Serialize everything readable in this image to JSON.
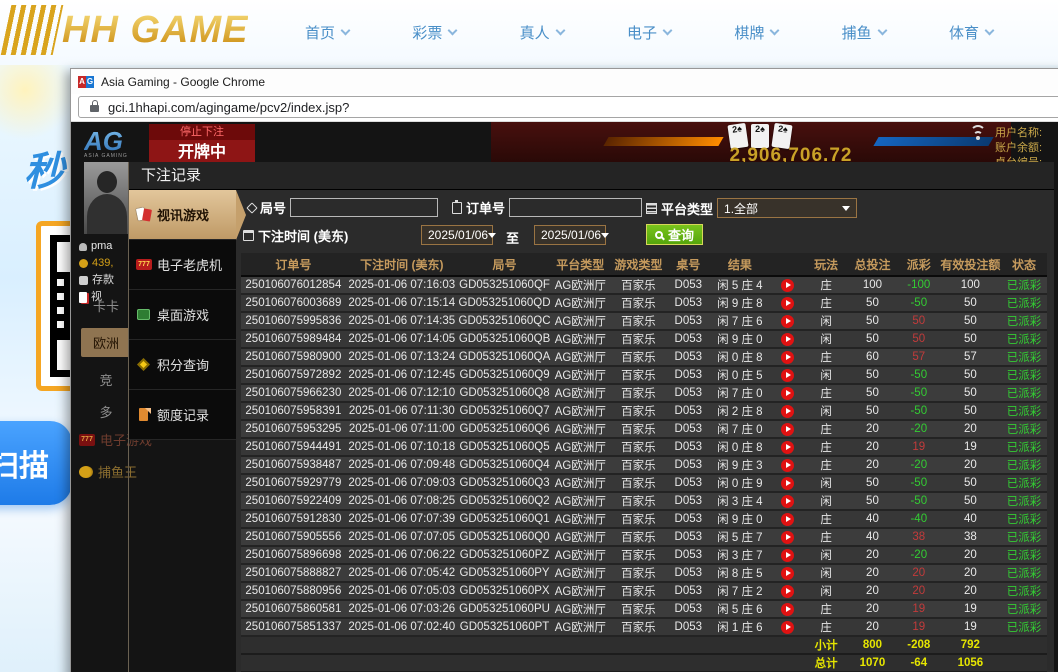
{
  "site_header": {
    "logo": "HH GAME",
    "nav": [
      {
        "label": "首页"
      },
      {
        "label": "彩票"
      },
      {
        "label": "真人"
      },
      {
        "label": "电子"
      },
      {
        "label": "棋牌"
      },
      {
        "label": "捕鱼"
      },
      {
        "label": "体育"
      }
    ]
  },
  "chrome": {
    "window_title": "Asia Gaming - Google Chrome",
    "url": "gci.1hhapi.com/agingame/pcv2/index.jsp?"
  },
  "left_page": {
    "promo_char": "秒",
    "scan_label": "扫描"
  },
  "lobby_bg": {
    "ag_logo": "AG",
    "ag_logo_sub": "ASIA GAMING",
    "stop_bet": "停止下注",
    "opening": "开牌中",
    "cards": [
      "2♠",
      "2♠",
      "2♠"
    ],
    "jackpot": "2,906,706.72",
    "user_panel": [
      "用户名称:",
      "账户余额:",
      "桌台编号:"
    ],
    "username": "pma",
    "balance": "439,",
    "deposit": "存款",
    "video_label": "视",
    "side_tabs": [
      "卡卡",
      "欧洲",
      "竞",
      "多"
    ],
    "slots_label": "电子游戏",
    "fish_label": "捕鱼王"
  },
  "modal": {
    "title": "下注记录",
    "menu": [
      {
        "label": "视讯游戏",
        "icon": "cards-icon",
        "active": true
      },
      {
        "label": "电子老虎机",
        "icon": "slots-777-icon",
        "active": false
      },
      {
        "label": "桌面游戏",
        "icon": "table-games-icon",
        "active": false
      },
      {
        "label": "积分查询",
        "icon": "points-diamond-icon",
        "active": false
      },
      {
        "label": "额度记录",
        "icon": "records-file-icon",
        "active": false
      }
    ],
    "filters": {
      "round_label": "局号",
      "order_label": "订单号",
      "platform_label": "平台类型",
      "platform_value": "1.全部",
      "time_label": "下注时间 (美东)",
      "date_from": "2025/01/06",
      "to_label": "至",
      "date_to": "2025/01/06",
      "search_label": "查询"
    },
    "table": {
      "headers": [
        "订单号",
        "下注时间 (美东)",
        "局号",
        "平台类型",
        "游戏类型",
        "桌号",
        "结果",
        "",
        "玩法",
        "总投注",
        "派彩",
        "有效投注额",
        "状态"
      ],
      "rows": [
        [
          "250106076012854",
          "2025-01-06 07:16:03",
          "GD053251060QF",
          "AG欧洲厅",
          "百家乐",
          "D053",
          "闲 5 庄 4",
          "庄",
          "100",
          "-100",
          "100",
          "已派彩"
        ],
        [
          "250106076003689",
          "2025-01-06 07:15:14",
          "GD053251060QD",
          "AG欧洲厅",
          "百家乐",
          "D053",
          "闲 9 庄 8",
          "庄",
          "50",
          "-50",
          "50",
          "已派彩"
        ],
        [
          "250106075995836",
          "2025-01-06 07:14:35",
          "GD053251060QC",
          "AG欧洲厅",
          "百家乐",
          "D053",
          "闲 7 庄 6",
          "闲",
          "50",
          "50",
          "50",
          "已派彩"
        ],
        [
          "250106075989484",
          "2025-01-06 07:14:05",
          "GD053251060QB",
          "AG欧洲厅",
          "百家乐",
          "D053",
          "闲 9 庄 0",
          "闲",
          "50",
          "50",
          "50",
          "已派彩"
        ],
        [
          "250106075980900",
          "2025-01-06 07:13:24",
          "GD053251060QA",
          "AG欧洲厅",
          "百家乐",
          "D053",
          "闲 0 庄 8",
          "庄",
          "60",
          "57",
          "57",
          "已派彩"
        ],
        [
          "250106075972892",
          "2025-01-06 07:12:45",
          "GD053251060Q9",
          "AG欧洲厅",
          "百家乐",
          "D053",
          "闲 0 庄 5",
          "闲",
          "50",
          "-50",
          "50",
          "已派彩"
        ],
        [
          "250106075966230",
          "2025-01-06 07:12:10",
          "GD053251060Q8",
          "AG欧洲厅",
          "百家乐",
          "D053",
          "闲 7 庄 0",
          "庄",
          "50",
          "-50",
          "50",
          "已派彩"
        ],
        [
          "250106075958391",
          "2025-01-06 07:11:30",
          "GD053251060Q7",
          "AG欧洲厅",
          "百家乐",
          "D053",
          "闲 2 庄 8",
          "闲",
          "50",
          "-50",
          "50",
          "已派彩"
        ],
        [
          "250106075953295",
          "2025-01-06 07:11:00",
          "GD053251060Q6",
          "AG欧洲厅",
          "百家乐",
          "D053",
          "闲 7 庄 0",
          "庄",
          "20",
          "-20",
          "20",
          "已派彩"
        ],
        [
          "250106075944491",
          "2025-01-06 07:10:18",
          "GD053251060Q5",
          "AG欧洲厅",
          "百家乐",
          "D053",
          "闲 0 庄 8",
          "庄",
          "20",
          "19",
          "19",
          "已派彩"
        ],
        [
          "250106075938487",
          "2025-01-06 07:09:48",
          "GD053251060Q4",
          "AG欧洲厅",
          "百家乐",
          "D053",
          "闲 9 庄 3",
          "庄",
          "20",
          "-20",
          "20",
          "已派彩"
        ],
        [
          "250106075929779",
          "2025-01-06 07:09:03",
          "GD053251060Q3",
          "AG欧洲厅",
          "百家乐",
          "D053",
          "闲 0 庄 9",
          "闲",
          "50",
          "-50",
          "50",
          "已派彩"
        ],
        [
          "250106075922409",
          "2025-01-06 07:08:25",
          "GD053251060Q2",
          "AG欧洲厅",
          "百家乐",
          "D053",
          "闲 3 庄 4",
          "闲",
          "50",
          "-50",
          "50",
          "已派彩"
        ],
        [
          "250106075912830",
          "2025-01-06 07:07:39",
          "GD053251060Q1",
          "AG欧洲厅",
          "百家乐",
          "D053",
          "闲 9 庄 0",
          "庄",
          "40",
          "-40",
          "40",
          "已派彩"
        ],
        [
          "250106075905556",
          "2025-01-06 07:07:05",
          "GD053251060Q0",
          "AG欧洲厅",
          "百家乐",
          "D053",
          "闲 5 庄 7",
          "庄",
          "40",
          "38",
          "38",
          "已派彩"
        ],
        [
          "250106075896698",
          "2025-01-06 07:06:22",
          "GD053251060PZ",
          "AG欧洲厅",
          "百家乐",
          "D053",
          "闲 3 庄 7",
          "闲",
          "20",
          "-20",
          "20",
          "已派彩"
        ],
        [
          "250106075888827",
          "2025-01-06 07:05:42",
          "GD053251060PY",
          "AG欧洲厅",
          "百家乐",
          "D053",
          "闲 8 庄 5",
          "闲",
          "20",
          "20",
          "20",
          "已派彩"
        ],
        [
          "250106075880956",
          "2025-01-06 07:05:03",
          "GD053251060PX",
          "AG欧洲厅",
          "百家乐",
          "D053",
          "闲 7 庄 2",
          "闲",
          "20",
          "20",
          "20",
          "已派彩"
        ],
        [
          "250106075860581",
          "2025-01-06 07:03:26",
          "GD053251060PU",
          "AG欧洲厅",
          "百家乐",
          "D053",
          "闲 5 庄 6",
          "庄",
          "20",
          "19",
          "19",
          "已派彩"
        ],
        [
          "250106075851337",
          "2025-01-06 07:02:40",
          "GD053251060PT",
          "AG欧洲厅",
          "百家乐",
          "D053",
          "闲 1 庄 6",
          "庄",
          "20",
          "19",
          "19",
          "已派彩"
        ]
      ],
      "subtotal": {
        "label": "小计",
        "bet": "800",
        "payout": "-208",
        "valid": "792"
      },
      "total": {
        "label": "总计",
        "bet": "1070",
        "payout": "-64",
        "valid": "1056"
      }
    }
  }
}
